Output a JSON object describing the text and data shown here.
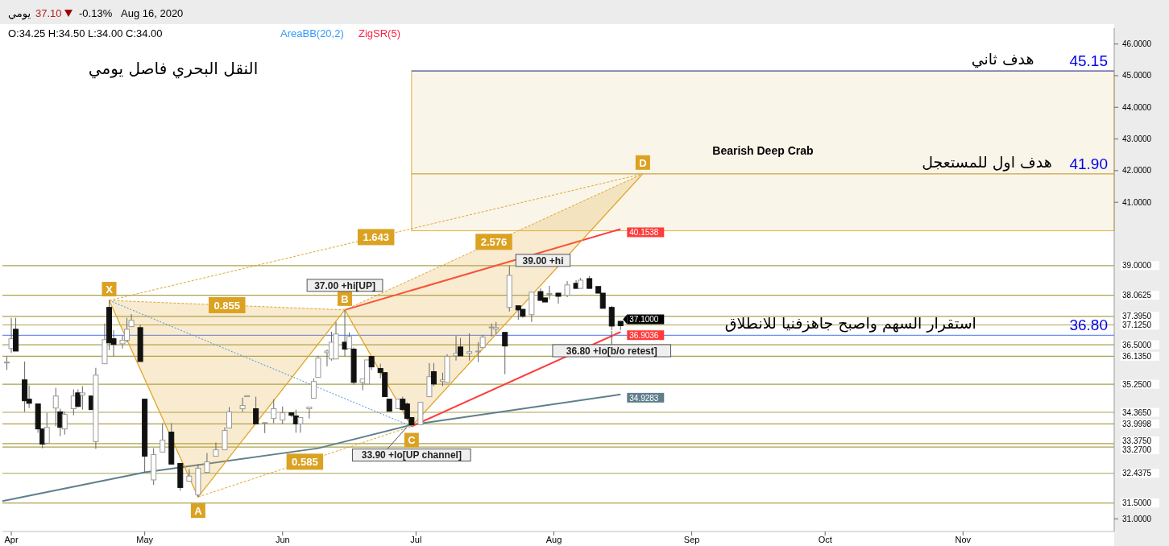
{
  "chart_data": {
    "type": "candlestick",
    "title": "النقل البحري فاصل يومي",
    "xlim": [
      "2020-03-30",
      "2020-12-05"
    ],
    "ylim": [
      30.6,
      46.5
    ],
    "xticks": [
      {
        "value": "2020-04-01",
        "label": "Apr"
      },
      {
        "value": "2020-05-01",
        "label": "May"
      },
      {
        "value": "2020-06-01",
        "label": "Jun"
      },
      {
        "value": "2020-07-01",
        "label": "Jul"
      },
      {
        "value": "2020-08-01",
        "label": "Aug"
      },
      {
        "value": "2020-09-01",
        "label": "Sep"
      },
      {
        "value": "2020-10-01",
        "label": "Oct"
      },
      {
        "value": "2020-11-01",
        "label": "Nov"
      }
    ],
    "yticks": [
      {
        "value": 31,
        "label": "31.0000"
      },
      {
        "value": 41,
        "label": "41.0000"
      },
      {
        "value": 42,
        "label": "42.0000"
      },
      {
        "value": 43,
        "label": "43.0000"
      },
      {
        "value": 44,
        "label": "44.0000"
      },
      {
        "value": 45,
        "label": "45.0000"
      },
      {
        "value": 46,
        "label": "46.0000"
      }
    ],
    "x": [
      "2020-03-31",
      "2020-04-01",
      "2020-04-02",
      "2020-04-04",
      "2020-04-05",
      "2020-04-07",
      "2020-04-08",
      "2020-04-09",
      "2020-04-11",
      "2020-04-12",
      "2020-04-13",
      "2020-04-15",
      "2020-04-16",
      "2020-04-17",
      "2020-04-19",
      "2020-04-20",
      "2020-04-22",
      "2020-04-23",
      "2020-04-24",
      "2020-04-26",
      "2020-04-27",
      "2020-04-28",
      "2020-04-30",
      "2020-05-01",
      "2020-05-03",
      "2020-05-05",
      "2020-05-07",
      "2020-05-09",
      "2020-05-11",
      "2020-05-13",
      "2020-05-15",
      "2020-05-17",
      "2020-05-19",
      "2020-05-20",
      "2020-05-23",
      "2020-05-24",
      "2020-05-26",
      "2020-05-28",
      "2020-05-30",
      "2020-06-01",
      "2020-06-03",
      "2020-06-04",
      "2020-06-05",
      "2020-06-07",
      "2020-06-08",
      "2020-06-09",
      "2020-06-11",
      "2020-06-12",
      "2020-06-13",
      "2020-06-15",
      "2020-06-16",
      "2020-06-17",
      "2020-06-19",
      "2020-06-20",
      "2020-06-21",
      "2020-06-23",
      "2020-06-24",
      "2020-06-25",
      "2020-06-27",
      "2020-06-28",
      "2020-06-29",
      "2020-06-30",
      "2020-07-02",
      "2020-07-04",
      "2020-07-05",
      "2020-07-07",
      "2020-07-08",
      "2020-07-10",
      "2020-07-11",
      "2020-07-13",
      "2020-07-15",
      "2020-07-16",
      "2020-07-18",
      "2020-07-19",
      "2020-07-21",
      "2020-07-22",
      "2020-07-24",
      "2020-07-25",
      "2020-07-27",
      "2020-07-29",
      "2020-07-30",
      "2020-07-31",
      "2020-08-02",
      "2020-08-04",
      "2020-08-06",
      "2020-08-07",
      "2020-08-09",
      "2020-08-11",
      "2020-08-12",
      "2020-08-14",
      "2020-08-16"
    ],
    "ohlc": [
      [
        35.95,
        36.13,
        35.7,
        35.95
      ],
      [
        36.38,
        37.35,
        36.25,
        36.69
      ],
      [
        36.99,
        37.35,
        36.3,
        36.3
      ],
      [
        35.39,
        35.97,
        34.38,
        34.73
      ],
      [
        34.78,
        35.21,
        34.5,
        34.65
      ],
      [
        34.63,
        34.63,
        33.72,
        33.84
      ],
      [
        33.84,
        33.84,
        33.23,
        33.36
      ],
      [
        33.39,
        34.35,
        33.36,
        33.89
      ],
      [
        34.5,
        35.14,
        33.92,
        34.88
      ],
      [
        34.38,
        34.48,
        33.61,
        33.89
      ],
      [
        33.84,
        34.38,
        33.66,
        34.3
      ],
      [
        34.48,
        35.09,
        34.27,
        34.88
      ],
      [
        34.98,
        35.09,
        34.53,
        34.55
      ],
      [
        34.91,
        35.19,
        34.45,
        34.98
      ],
      [
        34.88,
        34.88,
        34.45,
        34.45
      ],
      [
        33.44,
        35.77,
        33.21,
        35.54
      ],
      [
        35.9,
        37.17,
        35.9,
        36.66
      ],
      [
        37.68,
        37.9,
        36.33,
        36.56
      ],
      [
        36.69,
        36.96,
        36.13,
        36.51
      ],
      [
        36.53,
        36.79,
        36.38,
        36.64
      ],
      [
        36.64,
        37.35,
        36.58,
        36.99
      ],
      [
        37.07,
        37.47,
        37.06,
        37.27
      ],
      [
        37.04,
        37.14,
        35.97,
        35.97
      ],
      [
        34.78,
        34.78,
        32.47,
        32.98
      ],
      [
        32.23,
        33.23,
        32.07,
        33.03
      ],
      [
        33.11,
        34.02,
        33.11,
        33.49
      ],
      [
        33.74,
        34.02,
        32.73,
        32.73
      ],
      [
        32.75,
        32.75,
        31.89,
        31.99
      ],
      [
        32.19,
        32.57,
        32.19,
        32.35
      ],
      [
        31.76,
        32.73,
        31.69,
        32.6
      ],
      [
        32.47,
        33.08,
        32.47,
        32.8
      ],
      [
        32.98,
        33.41,
        32.98,
        33.18
      ],
      [
        33.18,
        33.89,
        33.18,
        33.79
      ],
      [
        33.87,
        34.53,
        33.87,
        34.38
      ],
      [
        34.48,
        34.83,
        34.38,
        34.58
      ],
      [
        34.86,
        34.89,
        34.86,
        34.89
      ],
      [
        34.48,
        34.86,
        34.0,
        34.0
      ],
      [
        34.02,
        34.04,
        33.71,
        34.04
      ],
      [
        34.17,
        34.78,
        34.02,
        34.48
      ],
      [
        34.12,
        34.55,
        34.0,
        34.35
      ],
      [
        34.35,
        34.35,
        34.22,
        34.27
      ],
      [
        34.25,
        34.45,
        33.72,
        34.0
      ],
      [
        34.0,
        34.2,
        33.72,
        34.2
      ],
      [
        34.48,
        34.53,
        34.17,
        34.53
      ],
      [
        34.81,
        35.44,
        34.81,
        35.34
      ],
      [
        35.47,
        36.15,
        35.47,
        36.08
      ],
      [
        36.25,
        36.35,
        35.82,
        36.3
      ],
      [
        36.05,
        36.91,
        36.0,
        36.58
      ],
      [
        36.05,
        37.22,
        36.05,
        36.84
      ],
      [
        36.58,
        37.6,
        36.13,
        36.36
      ],
      [
        36.38,
        36.89,
        36.38,
        36.76
      ],
      [
        36.36,
        36.41,
        35.24,
        35.31
      ],
      [
        35.31,
        35.42,
        35.06,
        35.42
      ],
      [
        35.26,
        36.02,
        35.26,
        36.02
      ],
      [
        36.13,
        36.13,
        35.7,
        35.8
      ],
      [
        35.75,
        35.9,
        35.44,
        35.62
      ],
      [
        35.62,
        35.62,
        34.86,
        34.86
      ],
      [
        34.78,
        34.78,
        34.4,
        34.4
      ],
      [
        34.48,
        34.78,
        34.48,
        34.78
      ],
      [
        34.78,
        34.86,
        34.45,
        34.45
      ],
      [
        34.63,
        34.68,
        34.12,
        34.17
      ],
      [
        34.2,
        34.2,
        33.92,
        33.97
      ],
      [
        33.97,
        34.68,
        33.97,
        34.68
      ],
      [
        34.86,
        35.92,
        34.86,
        35.49
      ],
      [
        35.65,
        35.92,
        35.19,
        35.26
      ],
      [
        35.34,
        35.62,
        35.19,
        35.39
      ],
      [
        35.31,
        36.2,
        35.31,
        36.13
      ],
      [
        36.15,
        36.79,
        36.0,
        36.23
      ],
      [
        36.43,
        36.71,
        36.15,
        36.15
      ],
      [
        36.23,
        36.86,
        36.0,
        36.28
      ],
      [
        36.28,
        36.58,
        35.95,
        36.3
      ],
      [
        36.41,
        36.81,
        36.41,
        36.74
      ],
      [
        37.04,
        37.17,
        36.76,
        37.06
      ],
      [
        36.99,
        37.22,
        36.84,
        37.04
      ],
      [
        36.89,
        36.89,
        35.57,
        36.46
      ],
      [
        37.68,
        39.0,
        37.55,
        38.69
      ],
      [
        37.73,
        37.73,
        37.29,
        37.6
      ],
      [
        37.62,
        37.62,
        37.35,
        37.4
      ],
      [
        37.45,
        38.16,
        37.22,
        38.16
      ],
      [
        38.18,
        38.28,
        37.9,
        37.9
      ],
      [
        37.98,
        37.98,
        37.85,
        37.85
      ],
      [
        38.1,
        38.36,
        37.93,
        38.12
      ],
      [
        38.13,
        38.13,
        37.8,
        38.03
      ],
      [
        38.06,
        38.51,
        38.0,
        38.39
      ],
      [
        38.44,
        38.54,
        38.28,
        38.28
      ],
      [
        38.28,
        38.61,
        38.28,
        38.54
      ],
      [
        38.59,
        38.67,
        38.28,
        38.28
      ],
      [
        38.34,
        38.34,
        38.13,
        38.13
      ],
      [
        38.13,
        38.13,
        37.65,
        37.65
      ],
      [
        37.68,
        37.73,
        36.96,
        37.09
      ],
      [
        37.24,
        37.24,
        36.96,
        37.1
      ]
    ],
    "value_labels": [
      null,
      null,
      null,
      null,
      null,
      null,
      null,
      null,
      null,
      null,
      null,
      null,
      null,
      null,
      null,
      null,
      null,
      null,
      null,
      null,
      null,
      null,
      null,
      null,
      null,
      null,
      null,
      null,
      null,
      null,
      null,
      null,
      null,
      null,
      null,
      null,
      null,
      null,
      null,
      null,
      null,
      null,
      null,
      null,
      null,
      null,
      null,
      null,
      null,
      null,
      null,
      null,
      null,
      null,
      null,
      null,
      null,
      null,
      null,
      null,
      null,
      null,
      null,
      null,
      null,
      null,
      null,
      null,
      null,
      null,
      null,
      null,
      null,
      null,
      null,
      null,
      null,
      null,
      null,
      null,
      null,
      null,
      null,
      null,
      null,
      null,
      null,
      null,
      null,
      null,
      "37.1000"
    ],
    "series": [
      {
        "type": "line",
        "color": "#5f7f8c",
        "x": [
          "2020-03-30",
          "2020-05-01",
          "2020-06-09",
          "2020-06-30",
          "2020-08-16"
        ],
        "values": [
          31.56,
          32.47,
          33.23,
          33.97,
          34.9283
        ],
        "value_labels": [
          null,
          null,
          null,
          null,
          "34.9283"
        ]
      },
      {
        "type": "line",
        "color": "#ff3b3b",
        "x": [
          "2020-06-15",
          "2020-08-16"
        ],
        "values": [
          37.6,
          40.1538
        ],
        "value_labels": [
          null,
          "40.1538"
        ]
      },
      {
        "type": "line",
        "color": "#ff3b3b",
        "x": [
          "2020-06-30",
          "2020-08-16"
        ],
        "values": [
          33.92,
          36.9036
        ],
        "value_labels": [
          null,
          "36.9036"
        ]
      },
      {
        "type": "line",
        "color": "#e0a52a",
        "x": [
          "2020-04-23",
          "2020-05-13",
          "2020-06-15",
          "2020-06-30",
          "2020-08-21"
        ],
        "values": [
          37.9,
          31.69,
          37.6,
          33.92,
          41.9
        ]
      }
    ],
    "ref_lines": [
      {
        "axis": "y",
        "value": 39,
        "label": "39.0000",
        "color": "#a9a34e"
      },
      {
        "axis": "y",
        "value": 38.0625,
        "label": "38.0625",
        "color": "#a9a34e"
      },
      {
        "axis": "y",
        "value": 37.395,
        "label": "37.3950",
        "color": "#a9a34e"
      },
      {
        "axis": "y",
        "value": 37.125,
        "label": "37.1250",
        "color": "#a9a34e"
      },
      {
        "axis": "y",
        "value": 36.5,
        "label": "36.5000",
        "color": "#a9a34e"
      },
      {
        "axis": "y",
        "value": 36.135,
        "label": "36.1350",
        "color": "#a9a34e"
      },
      {
        "axis": "y",
        "value": 35.25,
        "label": "35.2500",
        "color": "#a9a34e"
      },
      {
        "axis": "y",
        "value": 34.365,
        "label": "34.3650",
        "color": "#a9a34e"
      },
      {
        "axis": "y",
        "value": 33.9998,
        "label": "33.9998",
        "color": "#a9a34e"
      },
      {
        "axis": "y",
        "value": 33.375,
        "label": "33.3750",
        "color": "#a9a34e"
      },
      {
        "axis": "y",
        "value": 33.27,
        "label": "33.2700",
        "color": "#a9a34e"
      },
      {
        "axis": "y",
        "value": 32.4375,
        "label": "32.4375",
        "color": "#a9a34e"
      },
      {
        "axis": "y",
        "value": 31.5,
        "label": "31.5000",
        "color": "#a9a34e"
      },
      {
        "axis": "y",
        "value": 36.8,
        "label": "36.80",
        "color": "#6f8ff0"
      },
      {
        "axis": "y",
        "value": 41.9,
        "label": "41.90",
        "color": "#c9a542"
      },
      {
        "axis": "y",
        "value": 45.15,
        "label": "45.15",
        "color": "#4a5fd0"
      }
    ],
    "bands": [
      {
        "axis": "y",
        "from": 40.1,
        "to": 45.15,
        "label": "Bearish Deep Crab",
        "color": "#faf5e9"
      }
    ],
    "annotations": [
      "يومي",
      "37.10",
      "-0.13%",
      "Aug 16, 2020",
      "O:34.25  H:34.50  L:34.00  C:34.00",
      "AreaBB(20,2)",
      "ZigSR(5)",
      {
        "text": "X",
        "x": "2020-04-23",
        "y": 37.9
      },
      {
        "text": "A",
        "x": "2020-05-13",
        "y": 31.69
      },
      {
        "text": "B",
        "x": "2020-06-15",
        "y": 37.6
      },
      {
        "text": "C",
        "x": "2020-06-30",
        "y": 33.92
      },
      {
        "text": "D",
        "x": "2020-08-21",
        "y": 41.9
      },
      "0.855",
      "0.585",
      "1.643",
      "2.576",
      {
        "text": "37.00 +hi[UP]",
        "x": "2020-06-15",
        "y": 37.6
      },
      {
        "text": "39.00 +hi",
        "x": "2020-07-22",
        "y": 39.0
      },
      {
        "text": "33.90 +lo[UP channel]",
        "x": "2020-06-30",
        "y": 33.92
      },
      {
        "text": "36.80 +lo[b/o retest]",
        "x": "2020-08-14",
        "y": 36.96
      },
      {
        "text": "هدف ثاني",
        "x": "2020-11-17",
        "y": 45.15
      },
      {
        "text": "هدف اول للمستعجل",
        "x": "2020-11-21",
        "y": 41.9
      },
      {
        "text": "استقرار السهم واصبح جاهزفنيا  للانطلاق",
        "x": "2020-11-04",
        "y": 36.8
      }
    ]
  }
}
